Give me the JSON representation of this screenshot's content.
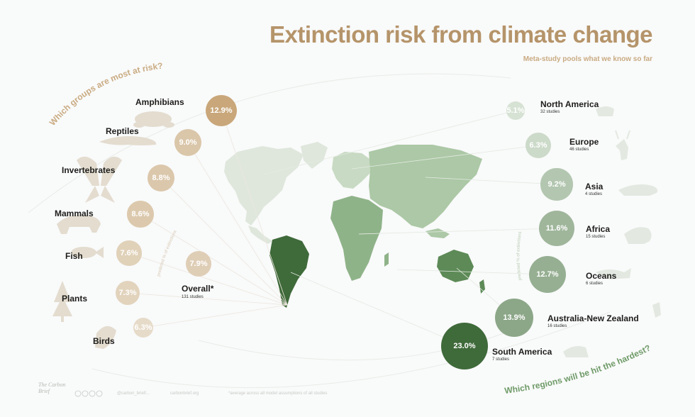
{
  "header": {
    "title": "Extinction risk from climate change",
    "subtitle": "Meta-study pools what we know so far"
  },
  "questions": {
    "groups": "Which groups are most at risk?",
    "regions": "Which regions will be hit the hardest?"
  },
  "axis_hints": {
    "left": "predicted % of extinctions",
    "right": "predicted % of extinctions"
  },
  "chart_data": [
    {
      "type": "bubble",
      "title": "Which groups are most at risk?",
      "unit": "predicted % of extinctions",
      "series": [
        {
          "label": "Amphibians",
          "display": "12.9%",
          "value": 12.9
        },
        {
          "label": "Reptiles",
          "display": "9.0%",
          "value": 9.0
        },
        {
          "label": "Invertebrates",
          "display": "8.8%",
          "value": 8.8
        },
        {
          "label": "Mammals",
          "display": "8.6%",
          "value": 8.6
        },
        {
          "label": "Fish",
          "display": "7.6%",
          "value": 7.6
        },
        {
          "label": "Plants",
          "display": "7.3%",
          "value": 7.3
        },
        {
          "label": "Birds",
          "display": "6.3%",
          "value": 6.3
        }
      ],
      "overall": {
        "label": "Overall*",
        "display": "7.9%",
        "value": 7.9,
        "studies": "131 studies"
      }
    },
    {
      "type": "bubble",
      "title": "Which regions will be hit the hardest?",
      "unit": "predicted % of extinctions",
      "series": [
        {
          "label": "North America",
          "display": "5.1%",
          "value": 5.1,
          "studies": "32 studies"
        },
        {
          "label": "Europe",
          "display": "6.3%",
          "value": 6.3,
          "studies": "46 studies"
        },
        {
          "label": "Asia",
          "display": "9.2%",
          "value": 9.2,
          "studies": "4 studies"
        },
        {
          "label": "Africa",
          "display": "11.6%",
          "value": 11.6,
          "studies": "15 studies"
        },
        {
          "label": "Oceans",
          "display": "12.7%",
          "value": 12.7,
          "studies": "6 studies"
        },
        {
          "label": "Australia-New Zealand",
          "display": "13.9%",
          "value": 13.9,
          "studies": "16 studies"
        },
        {
          "label": "South America",
          "display": "23.0%",
          "value": 23.0,
          "studies": "7 studies"
        }
      ]
    }
  ],
  "colors": {
    "title": "#b5946a",
    "groups_scale": [
      "#e6dbc9",
      "#c9a77a"
    ],
    "regions_scale": [
      "#d6e2d3",
      "#3f6a3a"
    ],
    "map_land": "#c9dcc4",
    "map_south_america": "#3f6a3a"
  },
  "icons": [
    "frog-icon",
    "lizard-icon",
    "butterfly-icon",
    "bear-icon",
    "fish-icon",
    "tree-icon",
    "bird-icon",
    "deer-icon",
    "tiger-icon",
    "elephant-icon",
    "whale-icon",
    "kangaroo-icon",
    "bear-icon",
    "sheep-icon",
    "creative-commons-icon"
  ],
  "footer": {
    "brand": "The Carbon Brief",
    "handle": "@carbon_brief/...",
    "site": "carbonbrief.org",
    "note": "*average across all model assumptions of all studies"
  }
}
